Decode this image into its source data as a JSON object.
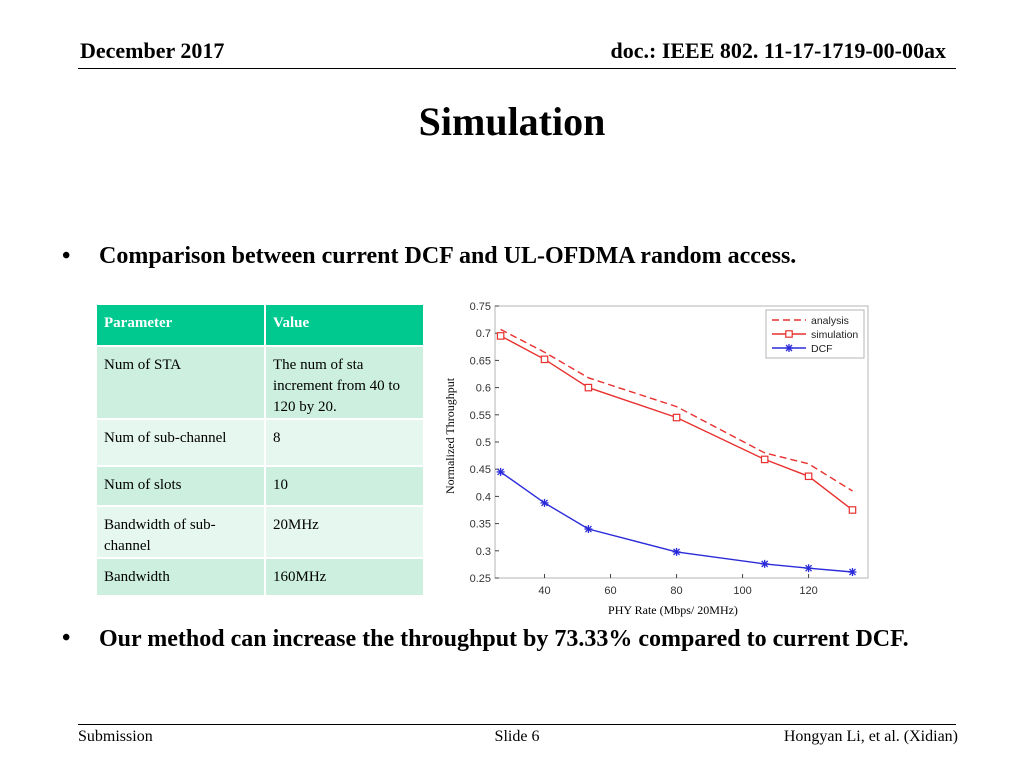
{
  "header": {
    "date": "December 2017",
    "doc": "doc.: IEEE 802. 11-17-1719-00-00ax"
  },
  "title": "Simulation",
  "bullets": [
    {
      "marker": "•",
      "text": "Comparison between current DCF and UL-OFDMA random access."
    },
    {
      "marker": "•",
      "text": "Our method can increase the throughput by 73.33% compared to current DCF."
    }
  ],
  "table": {
    "headers": [
      "Parameter",
      "Value"
    ],
    "rows": [
      [
        "Num of  STA",
        "The num of sta increment from 40 to 120  by 20."
      ],
      [
        "Num of  sub-channel",
        "8"
      ],
      [
        "Num of  slots",
        "10"
      ],
      [
        "Bandwidth  of  sub-channel",
        "20MHz"
      ],
      [
        "Bandwidth",
        "160MHz"
      ]
    ]
  },
  "chart_data": {
    "type": "line",
    "xlabel": "PHY  Rate   (Mbps/ 20MHz)",
    "ylabel": "Normalized     Throughput",
    "xlim": [
      25,
      138
    ],
    "ylim": [
      0.25,
      0.75
    ],
    "xticks": [
      40,
      60,
      80,
      100,
      120
    ],
    "yticks": [
      0.25,
      0.3,
      0.35,
      0.4,
      0.45,
      0.5,
      0.55,
      0.6,
      0.65,
      0.7,
      0.75
    ],
    "grid": false,
    "legend_position": "top-right",
    "series": [
      {
        "name": "analysis",
        "style": "dashed",
        "marker": "none",
        "color": "#e8312f",
        "x": [
          26.7,
          40,
          53.3,
          80,
          106.7,
          120,
          133.3
        ],
        "y": [
          0.707,
          0.665,
          0.618,
          0.565,
          0.48,
          0.46,
          0.41
        ]
      },
      {
        "name": "simulation",
        "style": "solid",
        "marker": "square",
        "color": "#e8312f",
        "x": [
          26.7,
          40,
          53.3,
          80,
          106.7,
          120,
          133.3
        ],
        "y": [
          0.695,
          0.652,
          0.6,
          0.545,
          0.468,
          0.437,
          0.375
        ]
      },
      {
        "name": "DCF",
        "style": "solid",
        "marker": "star",
        "color": "#2b2bd9",
        "x": [
          26.7,
          40,
          53.3,
          80,
          106.7,
          120,
          133.3
        ],
        "y": [
          0.445,
          0.388,
          0.34,
          0.298,
          0.276,
          0.268,
          0.261
        ]
      }
    ]
  },
  "footer": {
    "left": "Submission",
    "center": "Slide 6",
    "right": "Hongyan Li, et al. (Xidian)"
  }
}
